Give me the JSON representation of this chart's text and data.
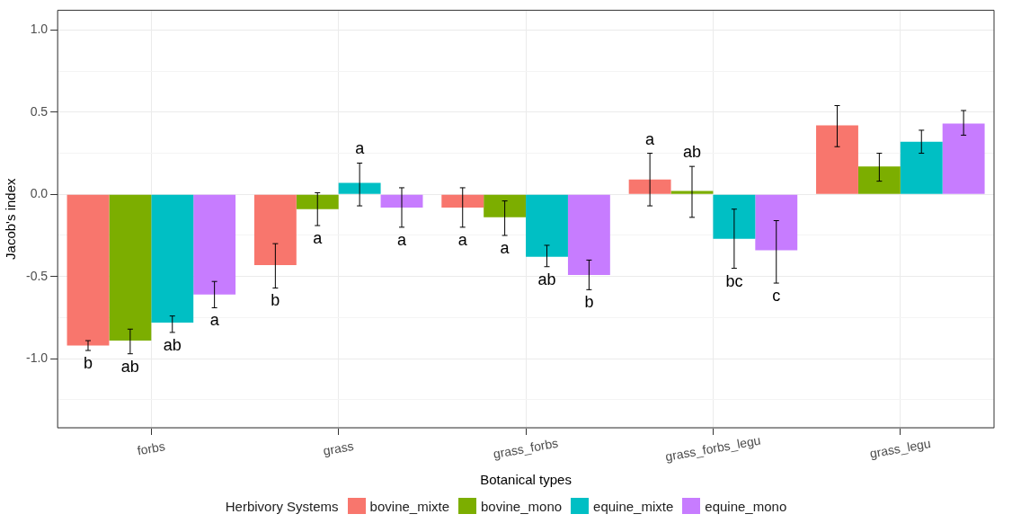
{
  "chart_data": {
    "type": "bar",
    "xlabel": "Botanical types",
    "ylabel": "Jacob's index",
    "legend_title": "Herbivory Systems",
    "legend": "bottom",
    "grid": true,
    "categories": [
      "forbs",
      "grass",
      "grass_forbs",
      "grass_forbs_legu",
      "grass_legu"
    ],
    "ylim": [
      -1.42,
      1.12
    ],
    "yticks": [
      {
        "value": -1.25,
        "label": null
      },
      {
        "value": -1,
        "label": "-1.0"
      },
      {
        "value": -0.75,
        "label": null
      },
      {
        "value": -0.5,
        "label": "-0.5"
      },
      {
        "value": -0.25,
        "label": null
      },
      {
        "value": 0,
        "label": "0.0"
      },
      {
        "value": 0.25,
        "label": null
      },
      {
        "value": 0.5,
        "label": "0.5"
      },
      {
        "value": 0.75,
        "label": null
      },
      {
        "value": 1,
        "label": "1.0"
      }
    ],
    "series": [
      {
        "name": "bovine_mixte",
        "color": "#f8766d",
        "values": [
          -0.92,
          -0.43,
          -0.08,
          0.09,
          0.42
        ],
        "errors": [
          [
            -0.95,
            -0.89
          ],
          [
            -0.57,
            -0.3
          ],
          [
            -0.2,
            0.04
          ],
          [
            -0.07,
            0.25
          ],
          [
            0.29,
            0.54
          ]
        ],
        "value_labels": [
          "b",
          "b",
          "a",
          "a",
          null
        ]
      },
      {
        "name": "bovine_mono",
        "color": "#7cae00",
        "values": [
          -0.89,
          -0.09,
          -0.14,
          0.02,
          0.17
        ],
        "errors": [
          [
            -0.97,
            -0.82
          ],
          [
            -0.19,
            0.01
          ],
          [
            -0.25,
            -0.04
          ],
          [
            -0.14,
            0.17
          ],
          [
            0.08,
            0.25
          ]
        ],
        "value_labels": [
          "ab",
          "a",
          "a",
          "ab",
          null
        ]
      },
      {
        "name": "equine_mixte",
        "color": "#00bfc4",
        "values": [
          -0.78,
          0.07,
          -0.38,
          -0.27,
          0.32
        ],
        "errors": [
          [
            -0.84,
            -0.74
          ],
          [
            -0.07,
            0.19
          ],
          [
            -0.44,
            -0.31
          ],
          [
            -0.45,
            -0.09
          ],
          [
            0.25,
            0.39
          ]
        ],
        "value_labels": [
          "ab",
          "a",
          "ab",
          "bc",
          null
        ]
      },
      {
        "name": "equine_mono",
        "color": "#c77cff",
        "values": [
          -0.61,
          -0.08,
          -0.49,
          -0.34,
          0.43
        ],
        "errors": [
          [
            -0.69,
            -0.53
          ],
          [
            -0.2,
            0.04
          ],
          [
            -0.58,
            -0.4
          ],
          [
            -0.54,
            -0.16
          ],
          [
            0.36,
            0.51
          ]
        ],
        "value_labels": [
          "a",
          "a",
          "b",
          "c",
          null
        ]
      }
    ]
  }
}
